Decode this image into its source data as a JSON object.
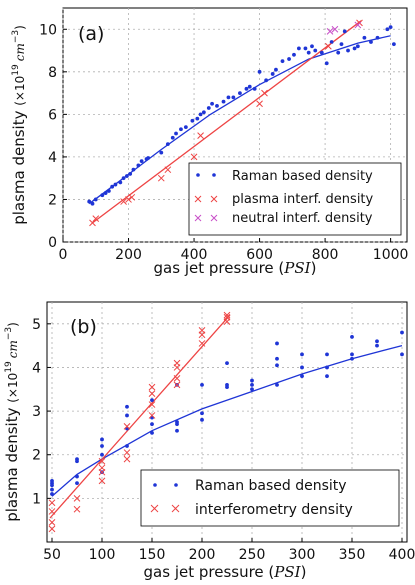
{
  "chart_data": [
    {
      "type": "scatter",
      "panel_label": "(a)",
      "xlabel_prefix": "gas jet pressure (",
      "xlabel_unit": "PSI",
      "xlabel_suffix": ")",
      "ylabel_main": "plasma density ",
      "ylabel_unit": "(×10",
      "ylabel_exp": "19",
      "ylabel_cm": "cm",
      "ylabel_cmexp": "−3",
      "ylabel_close": ")",
      "xlim": [
        0,
        1050
      ],
      "ylim": [
        0,
        11
      ],
      "xticks": [
        0,
        200,
        400,
        600,
        800,
        1000
      ],
      "yticks": [
        0,
        2,
        4,
        6,
        8,
        10
      ],
      "grid": true,
      "legend_position": "lower-right",
      "colors": {
        "raman": "#1f35d6",
        "interf": "#ee4444",
        "neutral": "#c84fc8"
      },
      "series": [
        {
          "name": "Raman based density",
          "marker": "dot",
          "points": [
            [
              80,
              1.9
            ],
            [
              90,
              1.8
            ],
            [
              100,
              2.0
            ],
            [
              120,
              2.2
            ],
            [
              130,
              2.3
            ],
            [
              140,
              2.4
            ],
            [
              150,
              2.6
            ],
            [
              160,
              2.7
            ],
            [
              175,
              2.8
            ],
            [
              185,
              3.0
            ],
            [
              195,
              3.1
            ],
            [
              205,
              3.2
            ],
            [
              215,
              3.4
            ],
            [
              230,
              3.6
            ],
            [
              240,
              3.8
            ],
            [
              255,
              3.9
            ],
            [
              260,
              3.95
            ],
            [
              300,
              4.2
            ],
            [
              320,
              4.6
            ],
            [
              335,
              4.9
            ],
            [
              345,
              5.1
            ],
            [
              360,
              5.3
            ],
            [
              375,
              5.4
            ],
            [
              395,
              5.7
            ],
            [
              410,
              5.8
            ],
            [
              420,
              6.0
            ],
            [
              430,
              6.1
            ],
            [
              445,
              6.3
            ],
            [
              455,
              6.5
            ],
            [
              470,
              6.4
            ],
            [
              490,
              6.6
            ],
            [
              505,
              6.8
            ],
            [
              520,
              6.8
            ],
            [
              540,
              7.0
            ],
            [
              560,
              7.2
            ],
            [
              570,
              7.3
            ],
            [
              585,
              7.2
            ],
            [
              600,
              8.0
            ],
            [
              620,
              7.6
            ],
            [
              640,
              7.9
            ],
            [
              650,
              8.1
            ],
            [
              670,
              8.5
            ],
            [
              690,
              8.6
            ],
            [
              705,
              8.8
            ],
            [
              720,
              9.1
            ],
            [
              740,
              9.1
            ],
            [
              750,
              8.9
            ],
            [
              760,
              9.2
            ],
            [
              770,
              9.0
            ],
            [
              790,
              8.9
            ],
            [
              805,
              8.4
            ],
            [
              820,
              9.4
            ],
            [
              840,
              8.9
            ],
            [
              850,
              9.3
            ],
            [
              860,
              9.9
            ],
            [
              870,
              9.0
            ],
            [
              890,
              9.1
            ],
            [
              900,
              9.2
            ],
            [
              920,
              9.6
            ],
            [
              940,
              9.4
            ],
            [
              960,
              9.6
            ],
            [
              990,
              10.0
            ],
            [
              1000,
              10.1
            ],
            [
              1010,
              9.3
            ]
          ]
        },
        {
          "name": "plasma interf. density",
          "marker": "x",
          "points": [
            [
              90,
              0.9
            ],
            [
              100,
              1.1
            ],
            [
              185,
              1.9
            ],
            [
              200,
              2.0
            ],
            [
              210,
              2.1
            ],
            [
              300,
              3.0
            ],
            [
              320,
              3.4
            ],
            [
              400,
              4.0
            ],
            [
              420,
              5.0
            ],
            [
              600,
              6.5
            ],
            [
              615,
              7.0
            ],
            [
              810,
              9.2
            ],
            [
              905,
              10.3
            ]
          ]
        },
        {
          "name": "neutral interf. density",
          "marker": "x",
          "points": [
            [
              815,
              9.9
            ],
            [
              830,
              10.0
            ],
            [
              900,
              10.2
            ]
          ]
        }
      ],
      "fits": [
        {
          "series": "Raman based density",
          "x": [
            80,
            150,
            300,
            450,
            600,
            750,
            900,
            1000
          ],
          "y": [
            1.8,
            2.6,
            4.35,
            6.0,
            7.4,
            8.6,
            9.35,
            9.7
          ]
        },
        {
          "series": "plasma interf. density",
          "x": [
            90,
            910
          ],
          "y": [
            0.9,
            10.4
          ]
        }
      ]
    },
    {
      "type": "scatter",
      "panel_label": "(b)",
      "xlabel_prefix": "gas jet pressure (",
      "xlabel_unit": "PSI",
      "xlabel_suffix": ")",
      "ylabel_main": "plasma density ",
      "ylabel_unit": "(×10",
      "ylabel_exp": "19",
      "ylabel_cm": "cm",
      "ylabel_cmexp": "−3",
      "ylabel_close": ")",
      "xlim": [
        45,
        405
      ],
      "ylim": [
        0,
        5.5
      ],
      "xticks": [
        50,
        100,
        150,
        200,
        250,
        300,
        350,
        400
      ],
      "yticks": [
        1,
        2,
        3,
        4,
        5
      ],
      "grid": true,
      "legend_position": "lower-right",
      "colors": {
        "raman": "#1f35d6",
        "interf": "#ee4444"
      },
      "series": [
        {
          "name": "Raman based density",
          "marker": "dot",
          "points": [
            [
              50,
              1.1
            ],
            [
              50,
              1.2
            ],
            [
              50,
              1.3
            ],
            [
              50,
              1.35
            ],
            [
              50,
              1.4
            ],
            [
              75,
              1.35
            ],
            [
              75,
              1.5
            ],
            [
              75,
              1.85
            ],
            [
              75,
              1.9
            ],
            [
              100,
              1.6
            ],
            [
              100,
              2.0
            ],
            [
              100,
              2.2
            ],
            [
              100,
              2.35
            ],
            [
              125,
              2.2
            ],
            [
              125,
              2.6
            ],
            [
              125,
              2.9
            ],
            [
              125,
              3.1
            ],
            [
              150,
              2.5
            ],
            [
              150,
              2.7
            ],
            [
              150,
              2.85
            ],
            [
              150,
              3.25
            ],
            [
              175,
              2.55
            ],
            [
              175,
              2.7
            ],
            [
              175,
              2.75
            ],
            [
              175,
              3.6
            ],
            [
              200,
              2.8
            ],
            [
              200,
              2.95
            ],
            [
              200,
              3.6
            ],
            [
              225,
              3.55
            ],
            [
              225,
              3.6
            ],
            [
              225,
              4.1
            ],
            [
              250,
              3.5
            ],
            [
              250,
              3.6
            ],
            [
              250,
              3.7
            ],
            [
              275,
              3.6
            ],
            [
              275,
              4.05
            ],
            [
              275,
              4.2
            ],
            [
              275,
              4.55
            ],
            [
              300,
              3.8
            ],
            [
              300,
              4.0
            ],
            [
              300,
              4.3
            ],
            [
              325,
              3.8
            ],
            [
              325,
              4.0
            ],
            [
              325,
              4.3
            ],
            [
              350,
              4.2
            ],
            [
              350,
              4.3
            ],
            [
              350,
              4.7
            ],
            [
              375,
              4.5
            ],
            [
              375,
              4.6
            ],
            [
              400,
              4.3
            ],
            [
              400,
              4.8
            ]
          ]
        },
        {
          "name": "interferometry density",
          "marker": "x",
          "points": [
            [
              50,
              0.3
            ],
            [
              50,
              0.45
            ],
            [
              50,
              0.7
            ],
            [
              50,
              0.9
            ],
            [
              75,
              0.75
            ],
            [
              75,
              1.0
            ],
            [
              100,
              1.4
            ],
            [
              100,
              1.6
            ],
            [
              100,
              1.7
            ],
            [
              100,
              1.85
            ],
            [
              125,
              1.9
            ],
            [
              125,
              2.05
            ],
            [
              125,
              2.65
            ],
            [
              150,
              2.9
            ],
            [
              150,
              3.15
            ],
            [
              150,
              3.4
            ],
            [
              150,
              3.55
            ],
            [
              175,
              3.6
            ],
            [
              175,
              3.75
            ],
            [
              175,
              4.0
            ],
            [
              175,
              4.1
            ],
            [
              200,
              4.55
            ],
            [
              200,
              4.75
            ],
            [
              200,
              4.85
            ],
            [
              225,
              5.05
            ],
            [
              225,
              5.15
            ],
            [
              225,
              5.2
            ]
          ]
        }
      ],
      "fits": [
        {
          "series": "Raman based density",
          "x": [
            50,
            75,
            100,
            150,
            200,
            250,
            300,
            350,
            400
          ],
          "y": [
            1.05,
            1.55,
            1.9,
            2.55,
            3.05,
            3.45,
            3.85,
            4.2,
            4.5
          ]
        },
        {
          "series": "interferometry density",
          "x": [
            48,
            228
          ],
          "y": [
            0.55,
            5.2
          ]
        }
      ]
    }
  ]
}
